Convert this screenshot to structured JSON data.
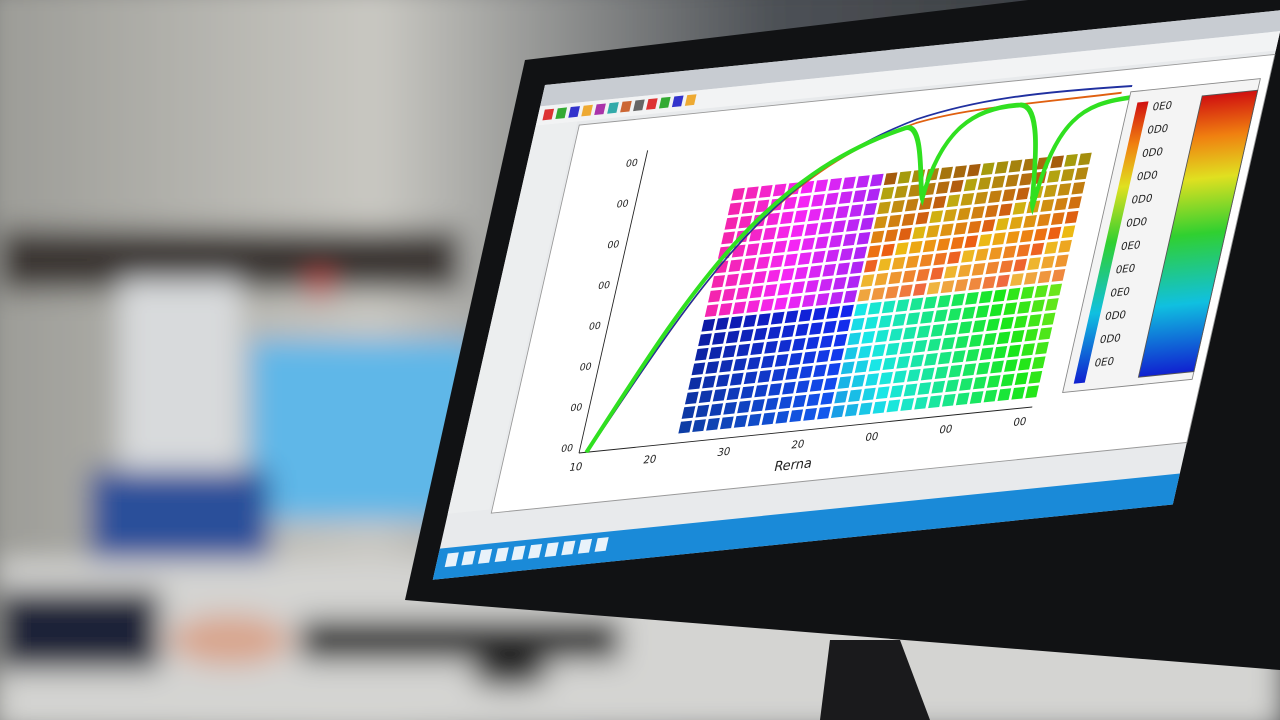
{
  "screen": {
    "x_axis_label": "Rerna",
    "x_ticks": [
      "10",
      "20",
      "30",
      "20",
      "00",
      "00",
      "00"
    ],
    "y_ticks": [
      "00",
      "00",
      "00",
      "00",
      "00",
      "00",
      "00",
      "00"
    ],
    "legend_labels": [
      "0E0",
      "0D0",
      "0D0",
      "0D0",
      "0D0",
      "0D0",
      "0E0",
      "0E0",
      "0E0",
      "0D0",
      "0D0",
      "0E0"
    ]
  }
}
